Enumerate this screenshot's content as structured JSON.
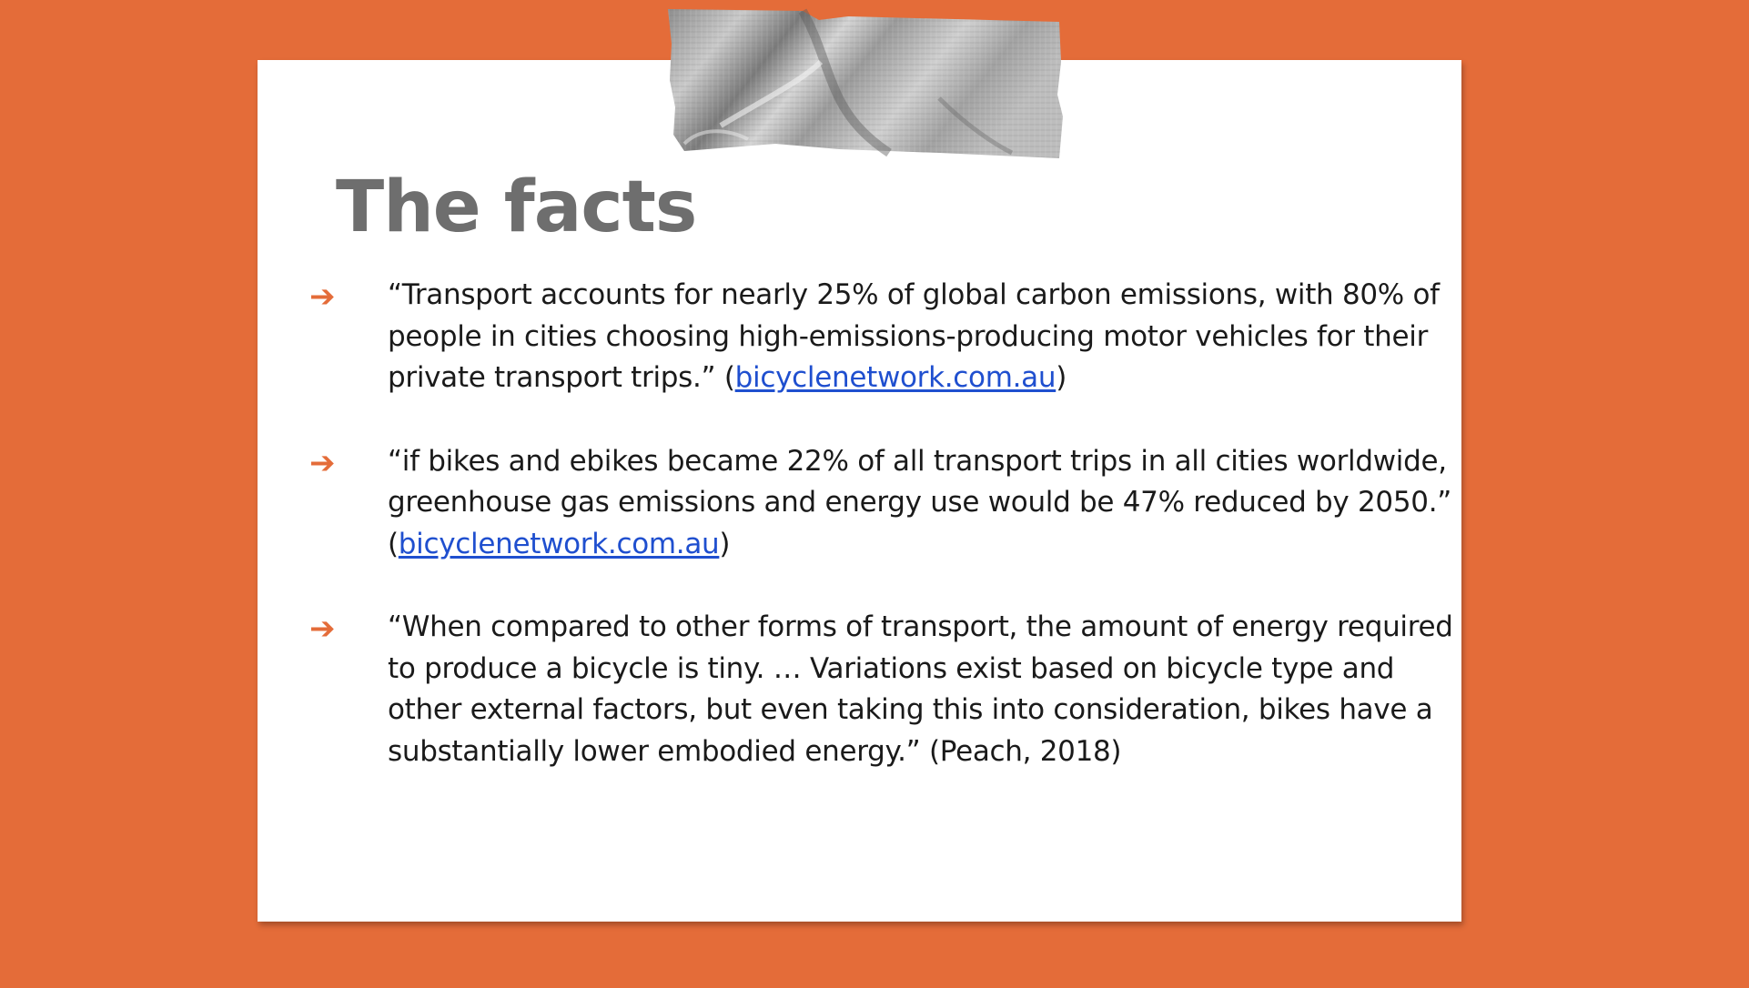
{
  "slide": {
    "title": "The facts",
    "background_color": "#E46C39",
    "accent_color": "#E46C39",
    "link_color": "#1F4FCF",
    "bullet_icon": "right-arrow-icon",
    "decoration_icon": "duct-tape-icon"
  },
  "facts": [
    {
      "text": "“Transport accounts for nearly 25% of global carbon emissions, with 80% of people in cities choosing high-emissions-producing motor vehicles for their private transport trips.” (",
      "link": "bicyclenetwork.com.au",
      "after": ")"
    },
    {
      "text": "“if bikes and ebikes became 22% of all transport trips in all cities worldwide, greenhouse gas emissions and energy use would be 47% reduced by 2050.” (",
      "link": "bicyclenetwork.com.au",
      "after": ")"
    },
    {
      "text": "“When compared to other forms of transport, the amount of energy required to produce a bicycle is tiny. … Variations exist based on bicycle type and other external factors, but even taking this into consideration, bikes have a substantially lower embodied energy.” (Peach, 2018)"
    }
  ]
}
